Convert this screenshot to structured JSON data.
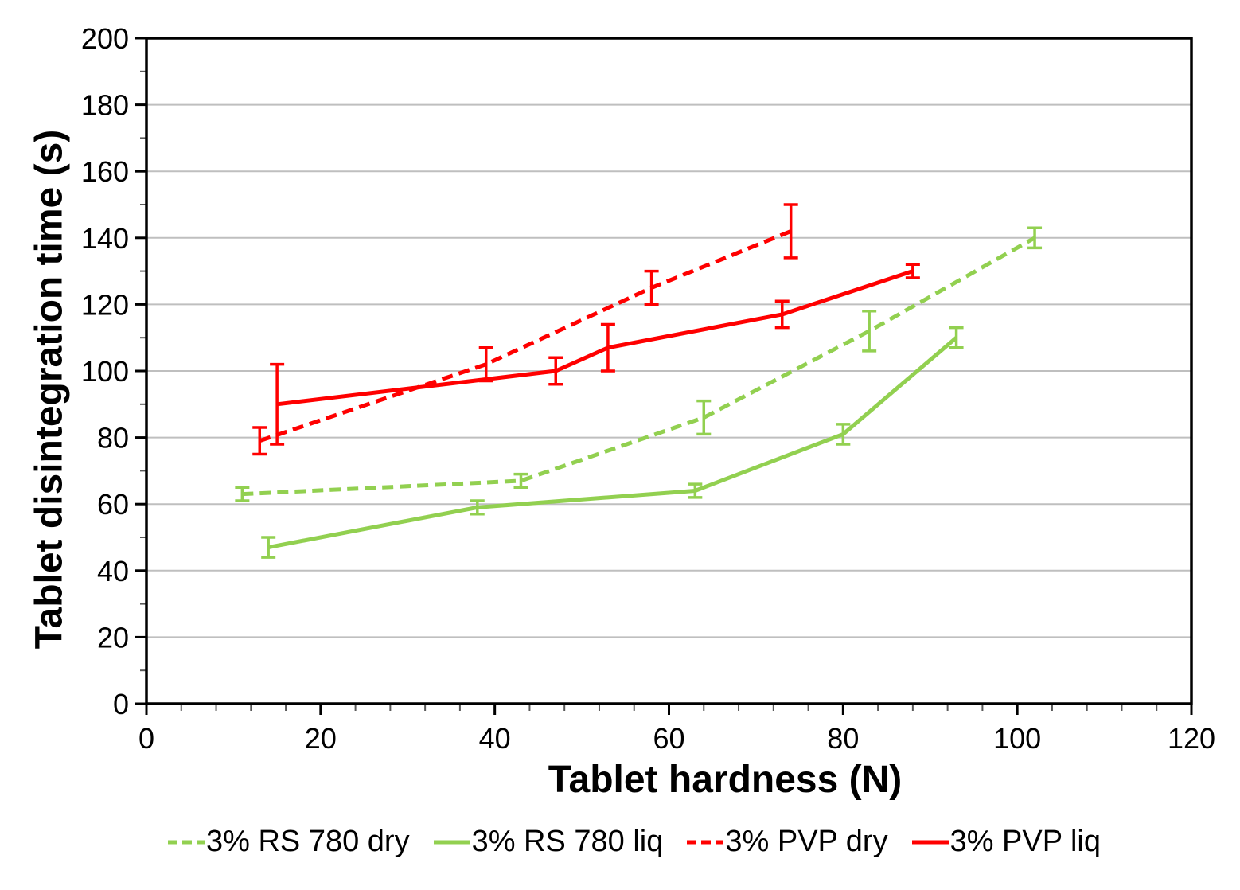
{
  "chart_data": {
    "type": "line",
    "title": "",
    "xlabel": "Tablet hardness (N)",
    "ylabel": "Tablet disintegration time (s)",
    "xlim": [
      0,
      120
    ],
    "ylim": [
      0,
      200
    ],
    "x_major_step": 20,
    "x_minor_step": 4,
    "y_major_step": 20,
    "y_minor_step": 10,
    "grid": "horizontal-major",
    "legend_position": "bottom",
    "colors": {
      "background": "#FFFFFF",
      "axis": "#000000",
      "gridline": "#BFBFBF",
      "minor_tick": "#595959",
      "green_series": "#92D050",
      "red_series": "#FF0000"
    },
    "series": [
      {
        "name": "3% RS 780 dry",
        "color": "#92D050",
        "style": "dashed",
        "x": [
          11,
          43,
          64,
          83,
          102
        ],
        "y": [
          63,
          67,
          86,
          112,
          140
        ],
        "y_err": [
          2,
          2,
          5,
          6,
          3
        ]
      },
      {
        "name": "3% RS 780 liq",
        "color": "#92D050",
        "style": "solid",
        "x": [
          14,
          38,
          63,
          80,
          93
        ],
        "y": [
          47,
          59,
          64,
          81,
          110
        ],
        "y_err": [
          3,
          2,
          2,
          3,
          3
        ]
      },
      {
        "name": "3% PVP dry",
        "color": "#FF0000",
        "style": "dashed",
        "x": [
          13,
          39,
          58,
          74
        ],
        "y": [
          79,
          102,
          125,
          142
        ],
        "y_err": [
          4,
          5,
          5,
          8
        ]
      },
      {
        "name": "3% PVP liq",
        "color": "#FF0000",
        "style": "solid",
        "x": [
          15,
          47,
          53,
          73,
          88
        ],
        "y": [
          90,
          100,
          107,
          117,
          130
        ],
        "y_err": [
          12,
          4,
          7,
          4,
          2
        ]
      }
    ]
  }
}
